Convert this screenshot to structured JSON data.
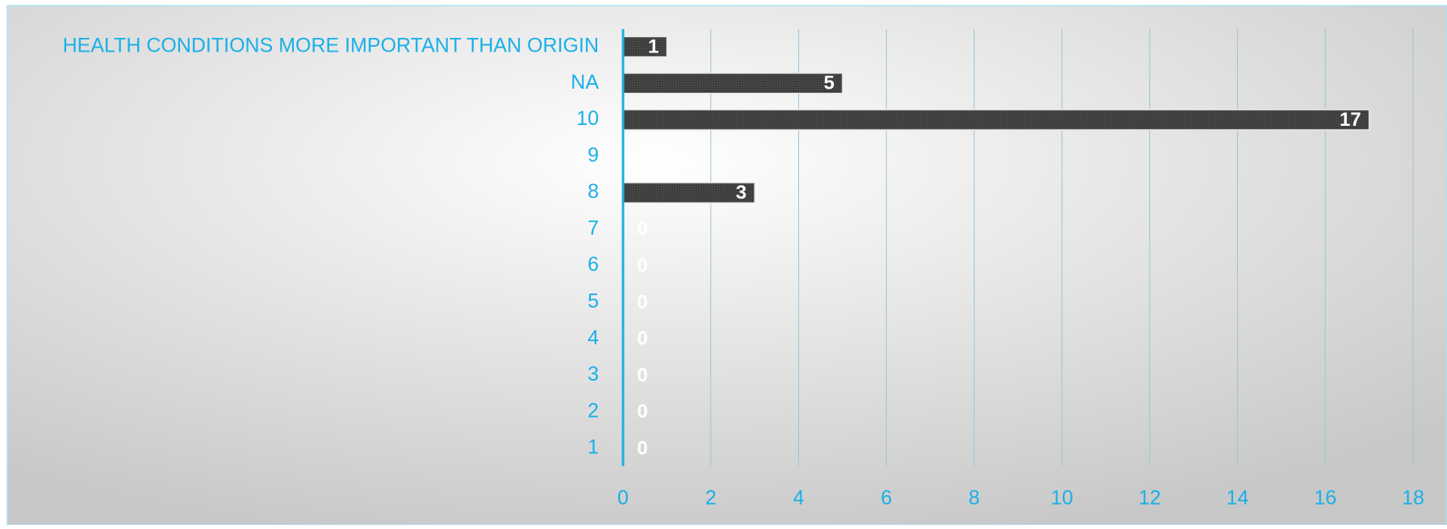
{
  "chart_data": {
    "type": "bar",
    "orientation": "horizontal",
    "categories": [
      "HEALTH CONDITIONS MORE IMPORTANT THAN ORIGIN",
      "NA",
      "10",
      "9",
      "8",
      "7",
      "6",
      "5",
      "4",
      "3",
      "2",
      "1"
    ],
    "values": [
      1,
      5,
      17,
      null,
      3,
      0,
      0,
      0,
      0,
      0,
      0,
      0
    ],
    "color": "#464646",
    "xlim": [
      0,
      18
    ],
    "xticks": [
      0,
      2,
      4,
      6,
      8,
      10,
      12,
      14,
      16,
      18
    ],
    "grid": true
  }
}
